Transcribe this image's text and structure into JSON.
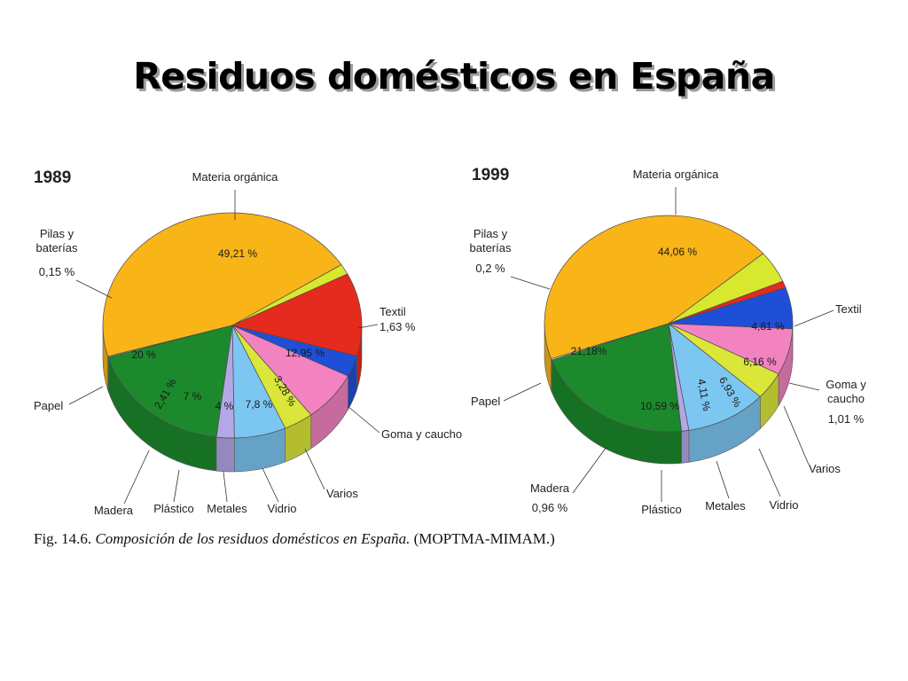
{
  "title": "Residuos domésticos en España",
  "caption": {
    "prefix": "Fig. 14.6.",
    "italic": "Composición de los residuos domésticos en España.",
    "source": "(MOPTMA-MIMAM.)"
  },
  "colors": {
    "Materia orgánica": "#f9b418",
    "Textil": "#d8e82e",
    "Goma y caucho": "#e52a1e",
    "Varios": "#1f4fd6",
    "Vidrio": "#f283c0",
    "Metales": "#dbe63a",
    "Plástico": "#7cc6f2",
    "Madera": "#b3a7e6",
    "Papel": "#1c8a2c",
    "Pilas y baterías": "#cfcfcf"
  },
  "chart_data": [
    {
      "type": "pie",
      "title": "1989",
      "slices": [
        {
          "name": "Materia orgánica",
          "value": 49.21,
          "value_label": "49,21 %",
          "label": "Materia orgánica"
        },
        {
          "name": "Textil",
          "value": 1.63,
          "value_label": "",
          "label": "Textil",
          "label_value": "1,63 %"
        },
        {
          "name": "Goma y caucho",
          "value": 12.95,
          "value_label": "12,95 %",
          "label": "Goma y caucho"
        },
        {
          "name": "Varios",
          "value": 3.28,
          "value_label": "3,28 %",
          "label": "Varios"
        },
        {
          "name": "Vidrio",
          "value": 7.8,
          "value_label": "7,8 %",
          "label": "Vidrio"
        },
        {
          "name": "Metales",
          "value": 4,
          "value_label": "4 %",
          "label": "Metales"
        },
        {
          "name": "Plástico",
          "value": 7,
          "value_label": "7 %",
          "label": "Plástico"
        },
        {
          "name": "Madera",
          "value": 2.41,
          "value_label": "2,41 %",
          "label": "Madera"
        },
        {
          "name": "Papel",
          "value": 20,
          "value_label": "20 %",
          "label": "Papel"
        },
        {
          "name": "Pilas y baterías",
          "value": 0.15,
          "value_label": "",
          "label": "Pilas y baterías",
          "label_value": "0,15 %"
        }
      ]
    },
    {
      "type": "pie",
      "title": "1999",
      "slices": [
        {
          "name": "Materia orgánica",
          "value": 44.06,
          "value_label": "44,06 %",
          "label": "Materia orgánica"
        },
        {
          "name": "Textil",
          "value": 4.81,
          "value_label": "4,81 %",
          "label": "Textil"
        },
        {
          "name": "Goma y caucho",
          "value": 1.01,
          "value_label": "",
          "label": "Goma y caucho",
          "label_value": "1,01 %"
        },
        {
          "name": "Varios",
          "value": 6.16,
          "value_label": "6,16 %",
          "label": "Varios"
        },
        {
          "name": "Vidrio",
          "value": 6.93,
          "value_label": "6,93 %",
          "label": "Vidrio"
        },
        {
          "name": "Metales",
          "value": 4.11,
          "value_label": "4,11 %",
          "label": "Metales"
        },
        {
          "name": "Plástico",
          "value": 10.59,
          "value_label": "10,59 %",
          "label": "Plástico"
        },
        {
          "name": "Madera",
          "value": 0.96,
          "value_label": "",
          "label": "Madera",
          "label_value": "0,96 %"
        },
        {
          "name": "Papel",
          "value": 21.18,
          "value_label": "21,18%",
          "label": "Papel"
        },
        {
          "name": "Pilas y baterías",
          "value": 0.2,
          "value_label": "",
          "label": "Pilas y baterías",
          "label_value": "0,2 %"
        }
      ]
    }
  ]
}
